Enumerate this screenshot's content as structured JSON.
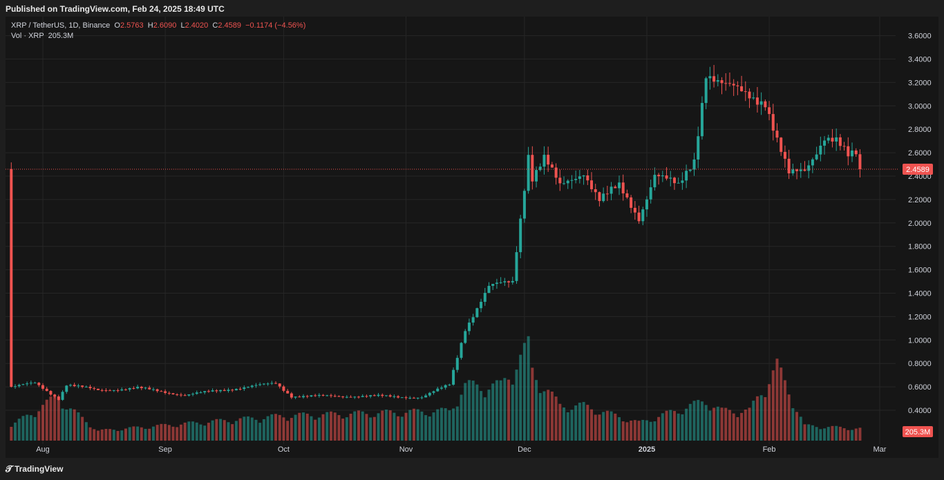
{
  "header": {
    "published": "Published on TradingView.com, Feb 24, 2025 18:49 UTC"
  },
  "legend": {
    "symbol": "XRP / TetherUS, 1D, Binance",
    "o_label": "O",
    "o_value": "2.5763",
    "h_label": "H",
    "h_value": "2.6090",
    "l_label": "L",
    "l_value": "2.4020",
    "c_label": "C",
    "c_value": "2.4589",
    "change": "−0.1174 (−4.56%)",
    "vol_label": "Vol · XRP",
    "vol_value": "205.3M"
  },
  "footer": {
    "brand": "TradingView"
  },
  "colors": {
    "up": "#26a69a",
    "down": "#ef5350",
    "background": "#161616",
    "grid": "#262626"
  },
  "chart_data": {
    "type": "candlestick",
    "symbol": "XRP / TetherUS",
    "interval": "1D",
    "exchange": "Binance",
    "y_ticks": [
      "3.6000",
      "3.4000",
      "3.2000",
      "3.0000",
      "2.8000",
      "2.6000",
      "2.4000",
      "2.2000",
      "2.0000",
      "1.8000",
      "1.6000",
      "1.4000",
      "1.2000",
      "1.0000",
      "0.8000",
      "0.6000",
      "0.4000"
    ],
    "ylim": [
      0.2,
      3.75
    ],
    "x_ticks": [
      "Aug",
      "Sep",
      "Oct",
      "Nov",
      "Dec",
      "2025",
      "Feb",
      "Mar"
    ],
    "last_price": 2.4589,
    "last_price_label": "2.4589",
    "last_volume_label": "205.3M",
    "price_anchors": [
      [
        "2024-07-24",
        0.6
      ],
      [
        "2024-07-30",
        0.63
      ],
      [
        "2024-08-05",
        0.5
      ],
      [
        "2024-08-07",
        0.62
      ],
      [
        "2024-08-15",
        0.57
      ],
      [
        "2024-08-25",
        0.59
      ],
      [
        "2024-09-06",
        0.53
      ],
      [
        "2024-09-15",
        0.57
      ],
      [
        "2024-09-29",
        0.63
      ],
      [
        "2024-10-03",
        0.52
      ],
      [
        "2024-10-25",
        0.52
      ],
      [
        "2024-11-05",
        0.51
      ],
      [
        "2024-11-12",
        0.62
      ],
      [
        "2024-11-16",
        1.1
      ],
      [
        "2024-11-22",
        1.45
      ],
      [
        "2024-11-28",
        1.5
      ],
      [
        "2024-12-02",
        2.6
      ],
      [
        "2024-12-03",
        2.4
      ],
      [
        "2024-12-06",
        2.55
      ],
      [
        "2024-12-10",
        2.3
      ],
      [
        "2024-12-16",
        2.45
      ],
      [
        "2024-12-20",
        2.2
      ],
      [
        "2024-12-25",
        2.3
      ],
      [
        "2024-12-30",
        2.05
      ],
      [
        "2025-01-03",
        2.42
      ],
      [
        "2025-01-09",
        2.3
      ],
      [
        "2025-01-13",
        2.55
      ],
      [
        "2025-01-16",
        3.3
      ],
      [
        "2025-01-19",
        3.2
      ],
      [
        "2025-01-21",
        3.15
      ],
      [
        "2025-01-27",
        3.1
      ],
      [
        "2025-01-31",
        3.05
      ],
      [
        "2025-02-03",
        2.7
      ],
      [
        "2025-02-06",
        2.4
      ],
      [
        "2025-02-10",
        2.45
      ],
      [
        "2025-02-15",
        2.75
      ],
      [
        "2025-02-18",
        2.7
      ],
      [
        "2025-02-21",
        2.55
      ],
      [
        "2025-02-23",
        2.58
      ],
      [
        "2025-02-24",
        2.46
      ]
    ],
    "volume_ylim": [
      0,
      1.0
    ],
    "volume_anchors": [
      [
        "2024-07-24",
        0.15
      ],
      [
        "2024-08-05",
        0.45
      ],
      [
        "2024-08-07",
        0.35
      ],
      [
        "2024-08-15",
        0.1
      ],
      [
        "2024-10-01",
        0.25
      ],
      [
        "2024-11-12",
        0.3
      ],
      [
        "2024-11-16",
        0.55
      ],
      [
        "2024-11-25",
        0.55
      ],
      [
        "2024-12-02",
        0.95
      ],
      [
        "2024-12-03",
        0.7
      ],
      [
        "2024-12-10",
        0.35
      ],
      [
        "2024-12-16",
        0.35
      ],
      [
        "2024-12-30",
        0.18
      ],
      [
        "2025-01-16",
        0.4
      ],
      [
        "2025-01-20",
        0.3
      ],
      [
        "2025-01-27",
        0.3
      ],
      [
        "2025-02-03",
        0.75
      ],
      [
        "2025-02-10",
        0.15
      ],
      [
        "2025-02-24",
        0.12
      ]
    ]
  }
}
